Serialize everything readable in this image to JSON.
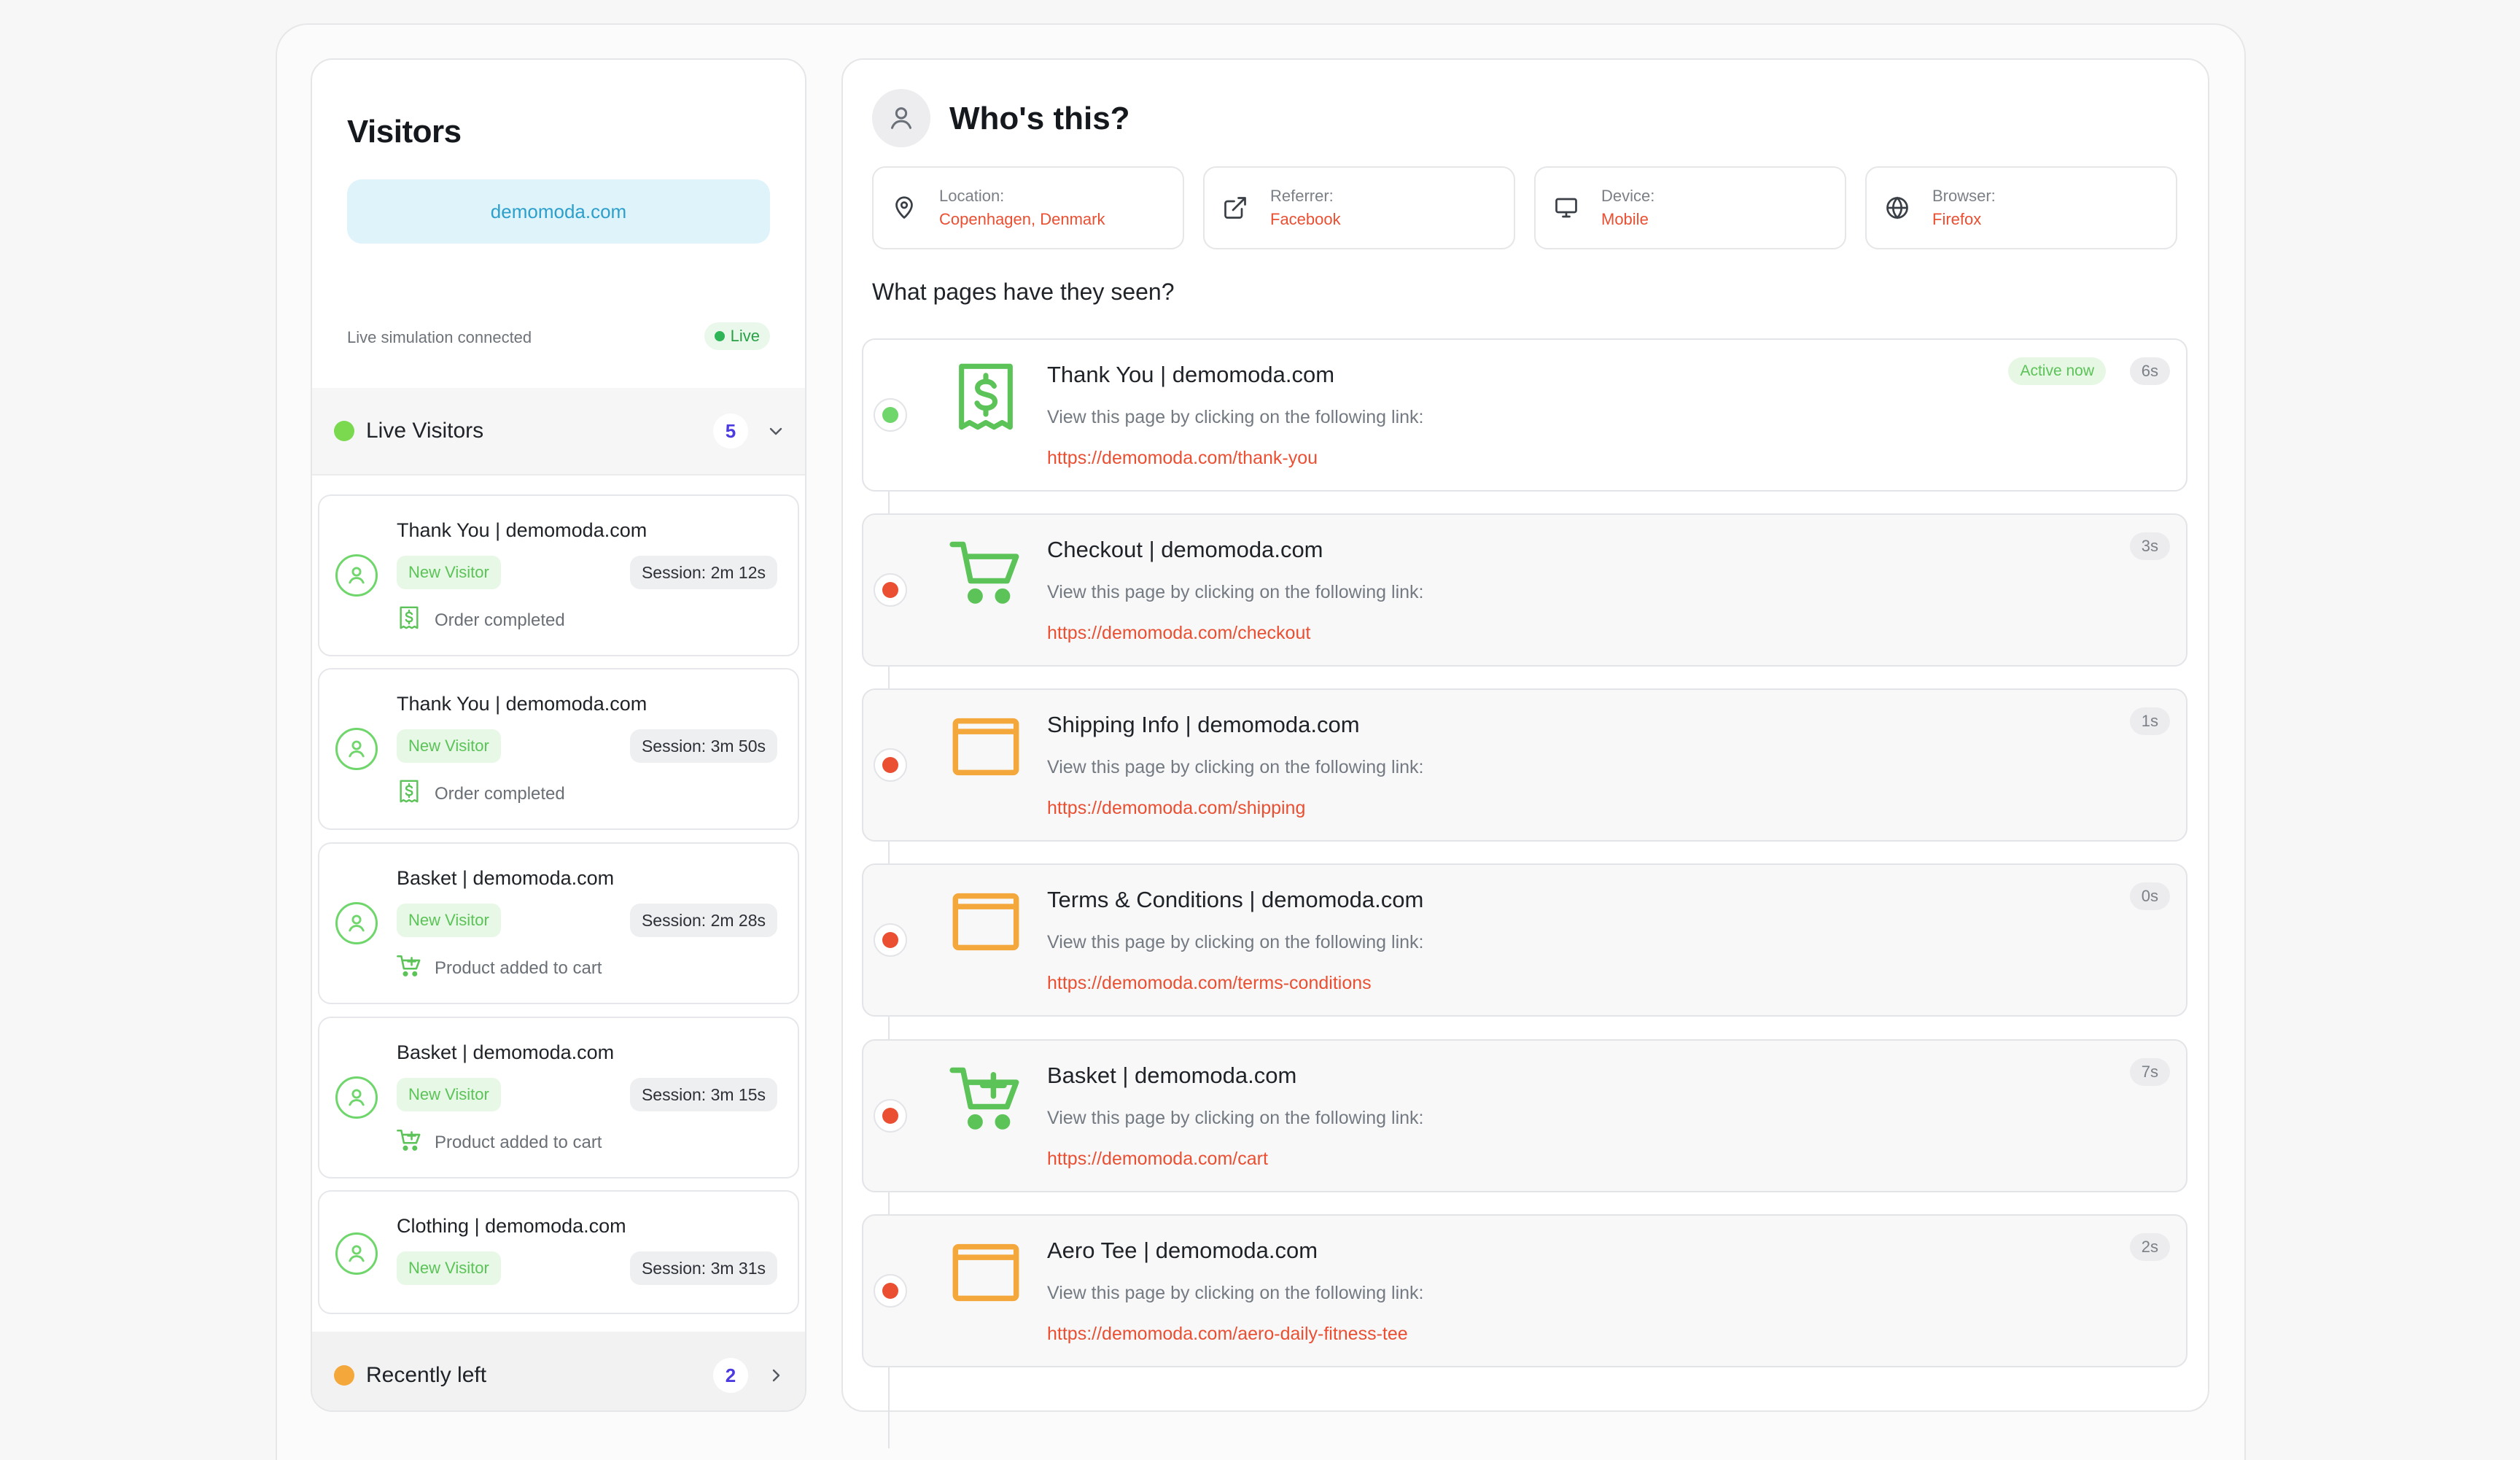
{
  "colors": {
    "accent_red": "#ea4f32",
    "green": "#5bc357",
    "orange": "#f4a73a",
    "live_green": "#2fb457",
    "count_purple": "#4b3be0"
  },
  "visitors": {
    "title": "Visitors",
    "domain": "demomoda.com",
    "simulation_status": "Live simulation connected",
    "live_badge": "Live",
    "live_section": {
      "label": "Live Visitors",
      "count": "5",
      "icon": "chevron-down-icon"
    },
    "left_section": {
      "label": "Recently left",
      "count": "2",
      "icon": "chevron-right-icon"
    },
    "cards": [
      {
        "title": "Thank You | demomoda.com",
        "tag": "New Visitor",
        "session": "Session: 2m 12s",
        "event": "Order completed",
        "event_icon": "receipt-dollar-icon"
      },
      {
        "title": "Thank You | demomoda.com",
        "tag": "New Visitor",
        "session": "Session: 3m 50s",
        "event": "Order completed",
        "event_icon": "receipt-dollar-icon"
      },
      {
        "title": "Basket | demomoda.com",
        "tag": "New Visitor",
        "session": "Session: 2m 28s",
        "event": "Product added to cart",
        "event_icon": "cart-plus-icon"
      },
      {
        "title": "Basket | demomoda.com",
        "tag": "New Visitor",
        "session": "Session: 3m 15s",
        "event": "Product added to cart",
        "event_icon": "cart-plus-icon"
      },
      {
        "title": "Clothing | demomoda.com",
        "tag": "New Visitor",
        "session": "Session: 3m 31s",
        "event": "",
        "event_icon": ""
      }
    ]
  },
  "who": {
    "title": "Who's this?",
    "info": [
      {
        "label": "Location:",
        "value": "Copenhagen, Denmark",
        "icon": "map-pin-icon"
      },
      {
        "label": "Referrer:",
        "value": "Facebook",
        "icon": "external-link-icon"
      },
      {
        "label": "Device:",
        "value": "Mobile",
        "icon": "monitor-icon"
      },
      {
        "label": "Browser:",
        "value": "Firefox",
        "icon": "globe-icon"
      }
    ],
    "pages_heading": "What pages have they seen?",
    "pages": [
      {
        "title": "Thank You | demomoda.com",
        "subtitle": "View this page by clicking on the following link:",
        "link": "https://demomoda.com/thank-you",
        "time": "6s",
        "active_label": "Active now",
        "icon": "receipt-dollar-icon",
        "status": "green"
      },
      {
        "title": "Checkout | demomoda.com",
        "subtitle": "View this page by clicking on the following link:",
        "link": "https://demomoda.com/checkout",
        "time": "3s",
        "active_label": "",
        "icon": "cart-icon",
        "status": "red"
      },
      {
        "title": "Shipping Info | demomoda.com",
        "subtitle": "View this page by clicking on the following link:",
        "link": "https://demomoda.com/shipping",
        "time": "1s",
        "active_label": "",
        "icon": "browser-window-icon",
        "status": "red"
      },
      {
        "title": "Terms & Conditions | demomoda.com",
        "subtitle": "View this page by clicking on the following link:",
        "link": "https://demomoda.com/terms-conditions",
        "time": "0s",
        "active_label": "",
        "icon": "browser-window-icon",
        "status": "red"
      },
      {
        "title": "Basket | demomoda.com",
        "subtitle": "View this page by clicking on the following link:",
        "link": "https://demomoda.com/cart",
        "time": "7s",
        "active_label": "",
        "icon": "cart-plus-icon",
        "status": "red"
      },
      {
        "title": "Aero Tee | demomoda.com",
        "subtitle": "View this page by clicking on the following link:",
        "link": "https://demomoda.com/aero-daily-fitness-tee",
        "time": "2s",
        "active_label": "",
        "icon": "browser-window-icon",
        "status": "red"
      }
    ]
  }
}
